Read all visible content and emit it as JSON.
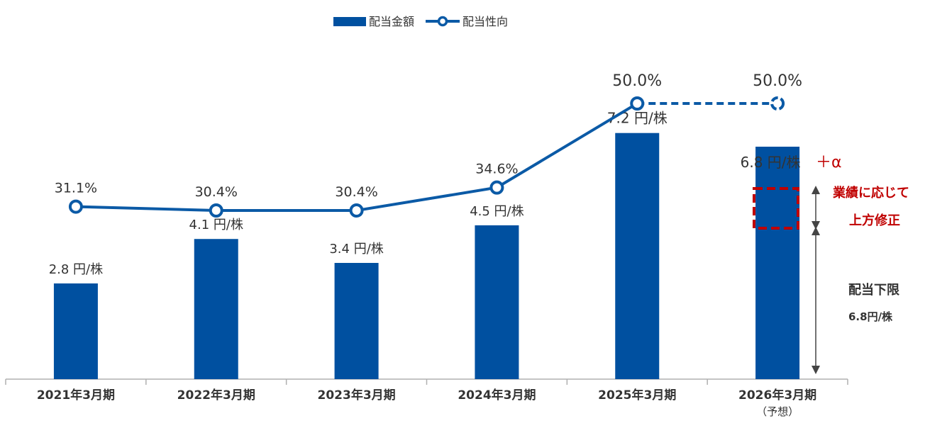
{
  "legend": {
    "amount": "配当金額",
    "ratio": "配当性向"
  },
  "colors": {
    "bar": "#0050a0",
    "line": "#0b5aa6",
    "accent": "#c00000",
    "axis": "#b0b0b0"
  },
  "chart_data": {
    "type": "bar",
    "categories": [
      "2021年3月期",
      "2022年3月期",
      "2023年3月期",
      "2024年3月期",
      "2025年3月期",
      "2026年3月期"
    ],
    "category_subtitles": [
      "",
      "",
      "",
      "",
      "",
      "（予想）"
    ],
    "series": [
      {
        "name": "配当金額",
        "type": "bar",
        "values": [
          2.8,
          4.1,
          3.4,
          4.5,
          7.2,
          6.8
        ],
        "labels": [
          "2.8 円/株",
          "4.1 円/株",
          "3.4 円/株",
          "4.5 円/株",
          "7.2 円/株",
          "6.8 円/株"
        ],
        "ylim": [
          0,
          10.78
        ]
      },
      {
        "name": "配当性向",
        "type": "line",
        "values": [
          31.1,
          30.4,
          30.4,
          34.6,
          50.0,
          50.0
        ],
        "labels": [
          "31.1%",
          "30.4%",
          "30.4%",
          "34.6%",
          "50.0%",
          "50.0%"
        ],
        "forecast_dashed_last_segment": true
      }
    ],
    "legend_position": "top-center",
    "grid": false
  },
  "annotations": {
    "plus_alpha": "＋α",
    "upward_line1": "業績に応じて",
    "upward_line2": "上方修正",
    "floor_title": "配当下限",
    "floor_value": "6.8円/株"
  }
}
